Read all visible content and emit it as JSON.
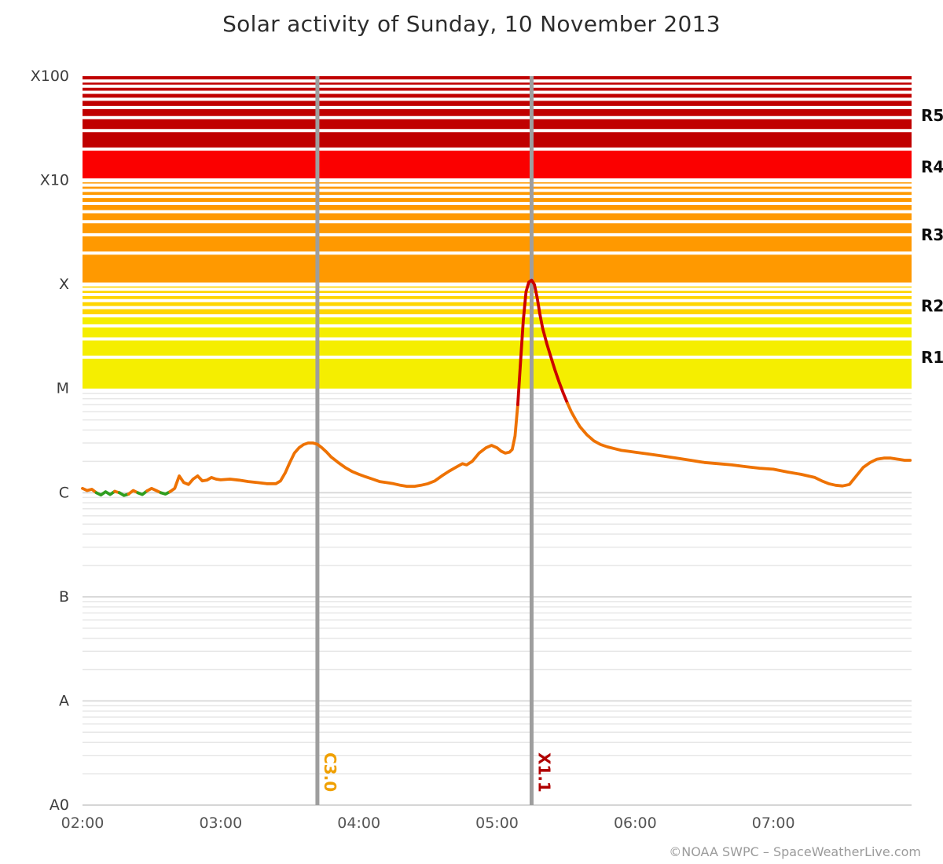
{
  "title": "Solar activity of Sunday, 10 November 2013",
  "footer": "©NOAA SWPC – SpaceWeatherLive.com",
  "chart_data": {
    "type": "line",
    "title": "Solar activity of Sunday, 10 November 2013",
    "grid": true,
    "legend": false,
    "x_range_hours": [
      2,
      8
    ],
    "y_log_range": [
      -9,
      -2
    ],
    "x_ticks": [
      {
        "label": "02:00",
        "hour": 2
      },
      {
        "label": "03:00",
        "hour": 3
      },
      {
        "label": "04:00",
        "hour": 4
      },
      {
        "label": "05:00",
        "hour": 5
      },
      {
        "label": "06:00",
        "hour": 6
      },
      {
        "label": "07:00",
        "hour": 7
      }
    ],
    "y_axis_labels": [
      {
        "label": "A0",
        "log": -9
      },
      {
        "label": "A",
        "log": -8
      },
      {
        "label": "B",
        "log": -7
      },
      {
        "label": "C",
        "log": -6
      },
      {
        "label": "M",
        "log": -5
      },
      {
        "label": "X",
        "log": -4
      },
      {
        "label": "X10",
        "log": -3
      },
      {
        "label": "X100",
        "log": -2
      }
    ],
    "right_scale_labels": [
      {
        "label": "R1",
        "flux": 2e-05
      },
      {
        "label": "R2",
        "flux": 6.2e-05
      },
      {
        "label": "R3",
        "flux": 0.0003
      },
      {
        "label": "R4",
        "flux": 0.00135
      },
      {
        "label": "R5",
        "flux": 0.0042
      }
    ],
    "bands": [
      {
        "level": "R1",
        "from_flux": 1e-05,
        "to_flux": 5e-05,
        "color": "#f5ee00"
      },
      {
        "level": "R2",
        "from_flux": 5e-05,
        "to_flux": 0.0001,
        "color": "#ffd500"
      },
      {
        "level": "R3",
        "from_flux": 0.0001,
        "to_flux": 0.001,
        "color": "#ff9900"
      },
      {
        "level": "R4",
        "from_flux": 0.001,
        "to_flux": 0.002,
        "color": "#fb0000"
      },
      {
        "level": "R5",
        "from_flux": 0.002,
        "to_flux": 0.01,
        "color": "#c00000"
      }
    ],
    "events": [
      {
        "label": "C3.0",
        "hour": 3.7,
        "color": "#f0a000"
      },
      {
        "label": "X1.1",
        "hour": 5.25,
        "color": "#b00000"
      }
    ],
    "series": {
      "flux_unit": "W/m²",
      "colors": {
        "low": "#2f9e1f",
        "mid": "#ee7203",
        "high": "#cc0000"
      },
      "thresholds": {
        "low_below": 1e-06,
        "high_above": 8e-06
      },
      "points": [
        [
          2.0,
          1.1e-06
        ],
        [
          2.033,
          1.05e-06
        ],
        [
          2.067,
          1.08e-06
        ],
        [
          2.1,
          1e-06
        ],
        [
          2.133,
          9.5e-07
        ],
        [
          2.167,
          1.02e-06
        ],
        [
          2.2,
          9.6e-07
        ],
        [
          2.233,
          1.03e-06
        ],
        [
          2.267,
          1e-06
        ],
        [
          2.3,
          9.4e-07
        ],
        [
          2.333,
          9.7e-07
        ],
        [
          2.367,
          1.05e-06
        ],
        [
          2.4,
          1e-06
        ],
        [
          2.433,
          9.6e-07
        ],
        [
          2.467,
          1.04e-06
        ],
        [
          2.5,
          1.1e-06
        ],
        [
          2.533,
          1.05e-06
        ],
        [
          2.567,
          1e-06
        ],
        [
          2.6,
          9.7e-07
        ],
        [
          2.633,
          1.02e-06
        ],
        [
          2.667,
          1.1e-06
        ],
        [
          2.7,
          1.45e-06
        ],
        [
          2.733,
          1.25e-06
        ],
        [
          2.767,
          1.2e-06
        ],
        [
          2.8,
          1.35e-06
        ],
        [
          2.833,
          1.45e-06
        ],
        [
          2.867,
          1.3e-06
        ],
        [
          2.9,
          1.32e-06
        ],
        [
          2.933,
          1.4e-06
        ],
        [
          2.967,
          1.35e-06
        ],
        [
          3.0,
          1.33e-06
        ],
        [
          3.067,
          1.35e-06
        ],
        [
          3.133,
          1.32e-06
        ],
        [
          3.2,
          1.28e-06
        ],
        [
          3.267,
          1.25e-06
        ],
        [
          3.333,
          1.22e-06
        ],
        [
          3.4,
          1.22e-06
        ],
        [
          3.433,
          1.3e-06
        ],
        [
          3.467,
          1.55e-06
        ],
        [
          3.5,
          1.95e-06
        ],
        [
          3.533,
          2.4e-06
        ],
        [
          3.567,
          2.7e-06
        ],
        [
          3.6,
          2.9e-06
        ],
        [
          3.633,
          3e-06
        ],
        [
          3.667,
          3e-06
        ],
        [
          3.7,
          2.92e-06
        ],
        [
          3.733,
          2.7e-06
        ],
        [
          3.767,
          2.45e-06
        ],
        [
          3.8,
          2.2e-06
        ],
        [
          3.85,
          1.95e-06
        ],
        [
          3.9,
          1.75e-06
        ],
        [
          3.95,
          1.6e-06
        ],
        [
          4.0,
          1.5e-06
        ],
        [
          4.05,
          1.42e-06
        ],
        [
          4.1,
          1.35e-06
        ],
        [
          4.15,
          1.28e-06
        ],
        [
          4.2,
          1.25e-06
        ],
        [
          4.25,
          1.22e-06
        ],
        [
          4.3,
          1.18e-06
        ],
        [
          4.35,
          1.15e-06
        ],
        [
          4.4,
          1.15e-06
        ],
        [
          4.45,
          1.18e-06
        ],
        [
          4.5,
          1.22e-06
        ],
        [
          4.55,
          1.3e-06
        ],
        [
          4.6,
          1.45e-06
        ],
        [
          4.65,
          1.6e-06
        ],
        [
          4.7,
          1.75e-06
        ],
        [
          4.75,
          1.9e-06
        ],
        [
          4.78,
          1.85e-06
        ],
        [
          4.82,
          2e-06
        ],
        [
          4.87,
          2.4e-06
        ],
        [
          4.92,
          2.7e-06
        ],
        [
          4.96,
          2.85e-06
        ],
        [
          5.0,
          2.7e-06
        ],
        [
          5.03,
          2.5e-06
        ],
        [
          5.06,
          2.4e-06
        ],
        [
          5.09,
          2.45e-06
        ],
        [
          5.11,
          2.6e-06
        ],
        [
          5.13,
          3.5e-06
        ],
        [
          5.15,
          7e-06
        ],
        [
          5.17,
          1.8e-05
        ],
        [
          5.19,
          4.5e-05
        ],
        [
          5.21,
          8.5e-05
        ],
        [
          5.23,
          0.000105
        ],
        [
          5.25,
          0.00011
        ],
        [
          5.27,
          0.0001
        ],
        [
          5.29,
          7.5e-05
        ],
        [
          5.31,
          5.2e-05
        ],
        [
          5.33,
          3.8e-05
        ],
        [
          5.36,
          2.7e-05
        ],
        [
          5.39,
          2e-05
        ],
        [
          5.42,
          1.5e-05
        ],
        [
          5.45,
          1.15e-05
        ],
        [
          5.48,
          9e-06
        ],
        [
          5.51,
          7.2e-06
        ],
        [
          5.54,
          5.9e-06
        ],
        [
          5.57,
          5e-06
        ],
        [
          5.6,
          4.3e-06
        ],
        [
          5.65,
          3.6e-06
        ],
        [
          5.7,
          3.15e-06
        ],
        [
          5.75,
          2.9e-06
        ],
        [
          5.8,
          2.75e-06
        ],
        [
          5.85,
          2.65e-06
        ],
        [
          5.9,
          2.55e-06
        ],
        [
          5.95,
          2.5e-06
        ],
        [
          6.0,
          2.45e-06
        ],
        [
          6.1,
          2.35e-06
        ],
        [
          6.2,
          2.25e-06
        ],
        [
          6.3,
          2.15e-06
        ],
        [
          6.4,
          2.05e-06
        ],
        [
          6.5,
          1.95e-06
        ],
        [
          6.6,
          1.9e-06
        ],
        [
          6.7,
          1.85e-06
        ],
        [
          6.8,
          1.78e-06
        ],
        [
          6.9,
          1.72e-06
        ],
        [
          7.0,
          1.68e-06
        ],
        [
          7.1,
          1.58e-06
        ],
        [
          7.2,
          1.5e-06
        ],
        [
          7.3,
          1.4e-06
        ],
        [
          7.35,
          1.3e-06
        ],
        [
          7.4,
          1.22e-06
        ],
        [
          7.45,
          1.18e-06
        ],
        [
          7.5,
          1.16e-06
        ],
        [
          7.55,
          1.2e-06
        ],
        [
          7.6,
          1.45e-06
        ],
        [
          7.65,
          1.75e-06
        ],
        [
          7.7,
          1.95e-06
        ],
        [
          7.75,
          2.1e-06
        ],
        [
          7.8,
          2.15e-06
        ],
        [
          7.85,
          2.15e-06
        ],
        [
          7.9,
          2.1e-06
        ],
        [
          7.95,
          2.05e-06
        ],
        [
          7.99,
          2.05e-06
        ]
      ]
    }
  }
}
